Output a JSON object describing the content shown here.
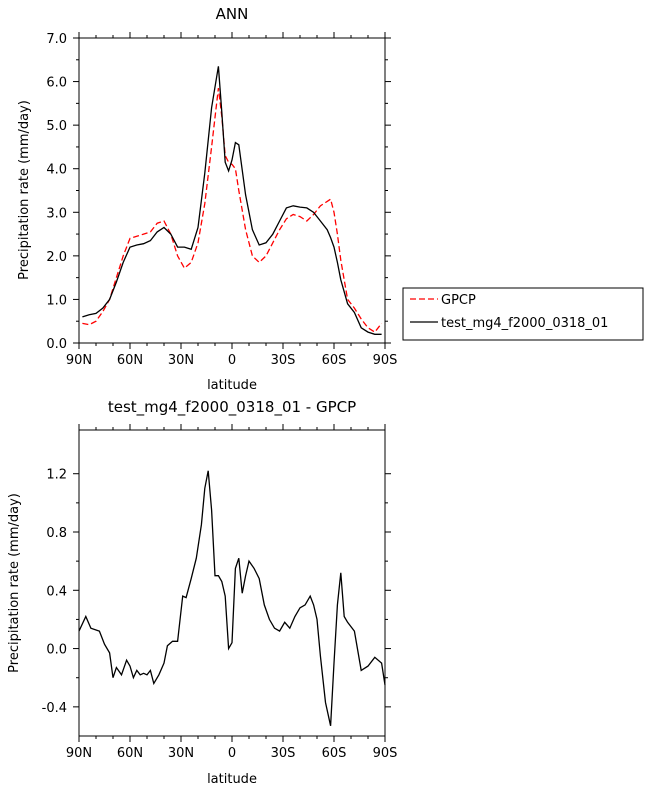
{
  "colors": {
    "gpcp": "#ff0000",
    "model": "#000000"
  },
  "chart_data": [
    {
      "type": "line",
      "title": "ANN",
      "xlabel": "latitude",
      "ylabel": "Precipitation rate (mm/day)",
      "x_unit": "degrees latitude (positive = north)",
      "xlim": [
        90,
        -90
      ],
      "ylim": [
        0,
        7
      ],
      "x_ticks": [
        90,
        60,
        30,
        0,
        -30,
        -60,
        -90
      ],
      "x_tick_labels": [
        "90N",
        "60N",
        "30N",
        "0",
        "30S",
        "60S",
        "90S"
      ],
      "y_ticks": [
        0,
        1,
        2,
        3,
        4,
        5,
        6,
        7
      ],
      "y_tick_labels": [
        "0.0",
        "1.0",
        "2.0",
        "3.0",
        "4.0",
        "5.0",
        "6.0",
        "7.0"
      ],
      "grid": false,
      "legend": "right",
      "x": [
        88,
        84,
        80,
        76,
        72,
        68,
        64,
        60,
        56,
        52,
        48,
        44,
        40,
        36,
        32,
        28,
        24,
        20,
        16,
        12,
        8,
        6,
        4,
        2,
        0,
        -2,
        -4,
        -8,
        -12,
        -16,
        -20,
        -24,
        -28,
        -32,
        -36,
        -40,
        -44,
        -48,
        -52,
        -56,
        -58,
        -60,
        -62,
        -64,
        -68,
        -72,
        -76,
        -80,
        -84,
        -88
      ],
      "series": [
        {
          "name": "GPCP",
          "style": "dashed",
          "values": [
            0.45,
            0.42,
            0.5,
            0.72,
            1.0,
            1.5,
            2.0,
            2.4,
            2.45,
            2.5,
            2.55,
            2.75,
            2.8,
            2.5,
            2.0,
            1.72,
            1.85,
            2.3,
            3.2,
            4.5,
            5.85,
            5.2,
            4.3,
            4.15,
            4.1,
            4.0,
            3.5,
            2.6,
            2.0,
            1.85,
            2.0,
            2.3,
            2.6,
            2.85,
            2.95,
            2.9,
            2.8,
            2.95,
            3.15,
            3.25,
            3.3,
            3.0,
            2.5,
            1.9,
            1.0,
            0.8,
            0.55,
            0.35,
            0.25,
            0.45
          ]
        },
        {
          "name": "test_mg4_f2000_0318_01",
          "style": "solid",
          "values": [
            0.6,
            0.65,
            0.68,
            0.8,
            1.0,
            1.4,
            1.85,
            2.2,
            2.25,
            2.28,
            2.35,
            2.55,
            2.65,
            2.5,
            2.2,
            2.2,
            2.15,
            2.65,
            3.9,
            5.4,
            6.35,
            5.3,
            4.15,
            3.95,
            4.2,
            4.6,
            4.55,
            3.4,
            2.6,
            2.25,
            2.3,
            2.5,
            2.8,
            3.1,
            3.15,
            3.12,
            3.1,
            3.0,
            2.8,
            2.6,
            2.42,
            2.2,
            1.85,
            1.45,
            0.9,
            0.7,
            0.35,
            0.25,
            0.2,
            0.2
          ]
        }
      ]
    },
    {
      "type": "line",
      "title": "test_mg4_f2000_0318_01 - GPCP",
      "xlabel": "latitude",
      "ylabel": "Precipitation rate (mm/day)",
      "x_unit": "degrees latitude (positive = north)",
      "xlim": [
        90,
        -90
      ],
      "ylim": [
        -0.6,
        1.5
      ],
      "x_ticks": [
        90,
        60,
        30,
        0,
        -30,
        -60,
        -90
      ],
      "x_tick_labels": [
        "90N",
        "60N",
        "30N",
        "0",
        "30S",
        "60S",
        "90S"
      ],
      "y_ticks": [
        -0.4,
        0.0,
        0.4,
        0.8,
        1.2
      ],
      "y_tick_labels": [
        "-0.4",
        "0.0",
        "0.4",
        "0.8",
        "1.2"
      ],
      "grid": false,
      "x": [
        90,
        86,
        83,
        78,
        75,
        72,
        70,
        68,
        65,
        62,
        60,
        58,
        56,
        54,
        52,
        50,
        48,
        46,
        43,
        40,
        38,
        35,
        32,
        29,
        27,
        24,
        21,
        18,
        16,
        14,
        12,
        10,
        8,
        6,
        4,
        2,
        0,
        -2,
        -4,
        -6,
        -8,
        -10,
        -13,
        -16,
        -19,
        -22,
        -25,
        -28,
        -31,
        -34,
        -37,
        -40,
        -43,
        -46,
        -48,
        -50,
        -52,
        -55,
        -58,
        -60,
        -62,
        -64,
        -66,
        -68,
        -72,
        -76,
        -80,
        -84,
        -88,
        -90
      ],
      "series": [
        {
          "name": "test_mg4_f2000_0318_01 - GPCP",
          "style": "solid",
          "values": [
            0.12,
            0.22,
            0.14,
            0.12,
            0.03,
            -0.03,
            -0.2,
            -0.13,
            -0.18,
            -0.08,
            -0.12,
            -0.2,
            -0.15,
            -0.18,
            -0.17,
            -0.18,
            -0.15,
            -0.24,
            -0.18,
            -0.1,
            0.02,
            0.05,
            0.05,
            0.36,
            0.35,
            0.48,
            0.62,
            0.85,
            1.1,
            1.22,
            0.95,
            0.5,
            0.5,
            0.46,
            0.36,
            0.0,
            0.04,
            0.55,
            0.62,
            0.38,
            0.5,
            0.6,
            0.55,
            0.48,
            0.3,
            0.2,
            0.14,
            0.12,
            0.18,
            0.14,
            0.22,
            0.28,
            0.3,
            0.36,
            0.3,
            0.2,
            -0.05,
            -0.37,
            -0.53,
            -0.1,
            0.3,
            0.52,
            0.22,
            0.18,
            0.12,
            -0.15,
            -0.12,
            -0.06,
            -0.1,
            -0.25
          ]
        }
      ]
    }
  ]
}
